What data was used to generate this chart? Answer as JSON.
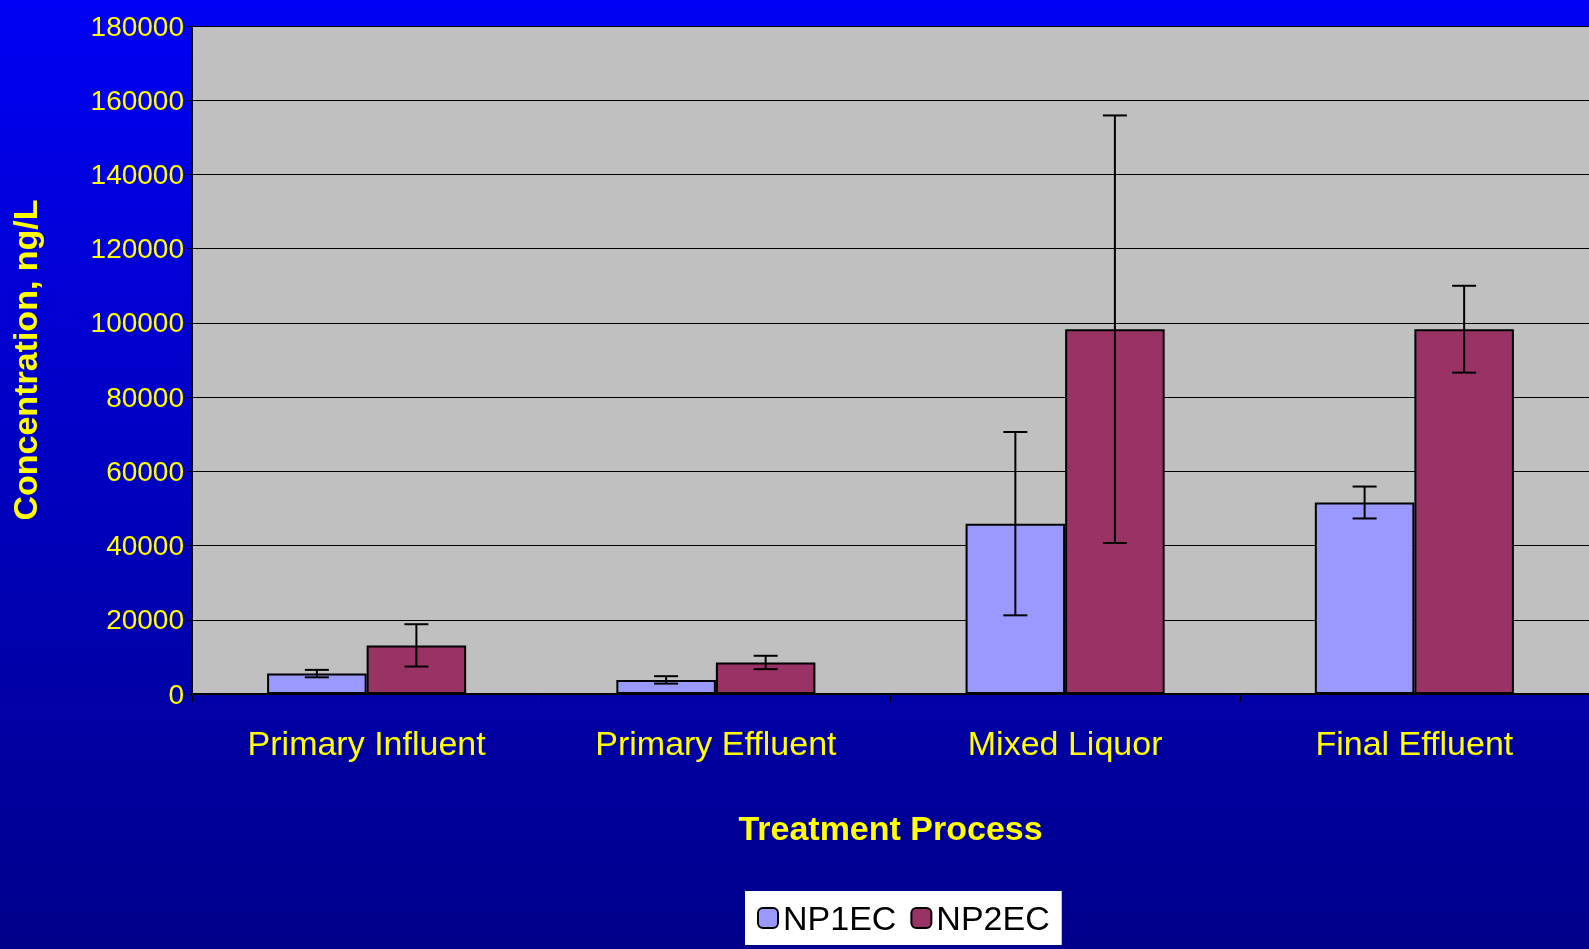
{
  "chart_data": {
    "type": "bar",
    "xlabel": "Treatment Process",
    "ylabel": "Concentration, ng/L",
    "categories": [
      "Primary Influent",
      "Primary Effluent",
      "Mixed Liquor",
      "Final Effluent"
    ],
    "series": [
      {
        "name": "NP1EC",
        "color": "#9999ff",
        "values": [
          5500,
          3800,
          45900,
          51600
        ],
        "errors": [
          1000,
          1000,
          24700,
          4300
        ]
      },
      {
        "name": "NP2EC",
        "color": "#993366",
        "values": [
          13100,
          8500,
          98300,
          98300
        ],
        "errors": [
          5700,
          1800,
          57600,
          11700
        ]
      }
    ],
    "ylim": [
      0,
      180000
    ],
    "yticks": [
      0,
      20000,
      40000,
      60000,
      80000,
      100000,
      120000,
      140000,
      160000,
      180000
    ],
    "grid": "y",
    "legend": "bottom"
  }
}
